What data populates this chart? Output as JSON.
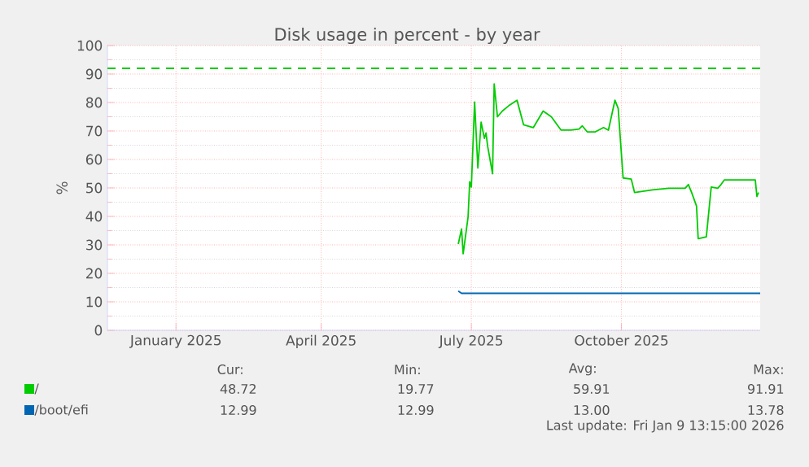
{
  "chart_data": {
    "type": "line",
    "title": "Disk usage in percent - by year",
    "ylabel": "%",
    "xlim": [
      "2024-12-05",
      "2026-01-09"
    ],
    "ylim": [
      0,
      100
    ],
    "xticks": [
      {
        "value": "2025-01-16",
        "label": "January 2025"
      },
      {
        "value": "2025-04-15",
        "label": "April 2025"
      },
      {
        "value": "2025-07-16",
        "label": "July 2025"
      },
      {
        "value": "2025-10-16",
        "label": "October 2025"
      }
    ],
    "yticks": [
      0,
      10,
      20,
      30,
      40,
      50,
      60,
      70,
      80,
      90,
      100
    ],
    "grid": true,
    "legend": "bottom",
    "series": [
      {
        "name": "/",
        "color": "#00cc00",
        "x": [
          "2025-07-08",
          "2025-07-10",
          "2025-07-11",
          "2025-07-14",
          "2025-07-15",
          "2025-07-16",
          "2025-07-18",
          "2025-07-20",
          "2025-07-22",
          "2025-07-24",
          "2025-07-25",
          "2025-07-26",
          "2025-07-29",
          "2025-07-30",
          "2025-08-01",
          "2025-08-04",
          "2025-08-08",
          "2025-08-13",
          "2025-08-17",
          "2025-08-23",
          "2025-08-29",
          "2025-09-03",
          "2025-09-09",
          "2025-09-15",
          "2025-09-20",
          "2025-09-22",
          "2025-09-25",
          "2025-09-30",
          "2025-10-05",
          "2025-10-08",
          "2025-10-12",
          "2025-10-14",
          "2025-10-17",
          "2025-10-22",
          "2025-10-24",
          "2025-11-04",
          "2025-11-14",
          "2025-11-24",
          "2025-11-26",
          "2025-11-28",
          "2025-12-01",
          "2025-12-02",
          "2025-12-07",
          "2025-12-10",
          "2025-12-14",
          "2025-12-16",
          "2025-12-18",
          "2025-12-24",
          "2025-12-31",
          "2026-01-06",
          "2026-01-07",
          "2026-01-08"
        ],
        "values": [
          30.3,
          35.6,
          26.9,
          39.8,
          52.2,
          50.3,
          80.2,
          57.0,
          73.1,
          67.4,
          69.3,
          64.6,
          55.0,
          86.5,
          75.0,
          77.0,
          78.9,
          80.8,
          72.2,
          71.2,
          77.0,
          75.0,
          70.3,
          70.3,
          70.7,
          71.8,
          69.7,
          69.7,
          71.2,
          70.3,
          80.8,
          77.9,
          53.5,
          53.1,
          48.4,
          49.3,
          49.9,
          49.9,
          51.2,
          48.4,
          43.6,
          32.2,
          32.8,
          50.3,
          49.9,
          51.2,
          52.8,
          52.8,
          52.8,
          52.8,
          47.0,
          48.4
        ]
      },
      {
        "name": "/boot/efi",
        "color": "#0066b3",
        "x": [
          "2025-07-08",
          "2025-07-10",
          "2026-01-09"
        ],
        "values": [
          13.8,
          13.0,
          13.0
        ]
      }
    ],
    "ref_lines": [
      {
        "axis": "y",
        "value": 92,
        "color": "#00cc00",
        "line_style": "dashed"
      }
    ],
    "annotations": [
      "Cur:",
      "Min:",
      "Avg:",
      "Max:",
      "48.72",
      "19.77",
      "59.91",
      "91.91",
      "12.99",
      "12.99",
      "13.00",
      "13.78",
      "Last update: Fri Jan  9 13:15:00 2026"
    ]
  }
}
